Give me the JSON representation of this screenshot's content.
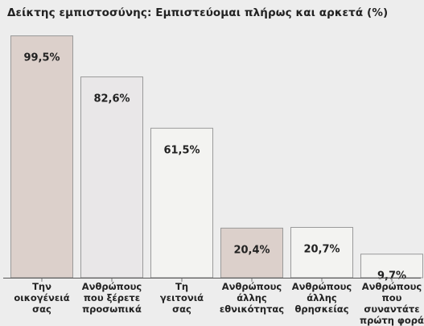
{
  "chart_data": {
    "type": "bar",
    "title": "Δείκτης εμπιστοσύνης: Εμπιστεύομαι πλήρως και αρκετά (%)",
    "categories": [
      [
        "Την",
        "οικογένειά",
        "σας"
      ],
      [
        "Ανθρώπους",
        "που ξέρετε",
        "προσωπικά"
      ],
      [
        "Τη",
        "γειτονιά",
        "σας"
      ],
      [
        "Ανθρώπους",
        "άλλης",
        "εθνικότητας"
      ],
      [
        "Ανθρώπους",
        "άλλης",
        "θρησκείας"
      ],
      [
        "Ανθρώπους",
        "που συναντάτε",
        "πρώτη φορά"
      ]
    ],
    "values": [
      99.5,
      82.6,
      61.5,
      20.4,
      20.7,
      9.7
    ],
    "value_labels": [
      "99,5%",
      "82,6%",
      "61,5%",
      "20,4%",
      "20,7%",
      "9,7%"
    ],
    "ylim": [
      0,
      100
    ],
    "grid": false,
    "xlabel": "",
    "ylabel": ""
  },
  "colors": {
    "background": "#ededed",
    "bar_tan": "#dcd0cb",
    "bar_light": "#e9e7e8",
    "bar_white": "#f3f3f1",
    "bar_stroke": "#9a9a9a",
    "baseline": "#555555",
    "tick": "#777777",
    "text": "#222222"
  },
  "bar_fill_keys": [
    "bar_tan",
    "bar_light",
    "bar_white",
    "bar_tan",
    "bar_white",
    "bar_white"
  ]
}
